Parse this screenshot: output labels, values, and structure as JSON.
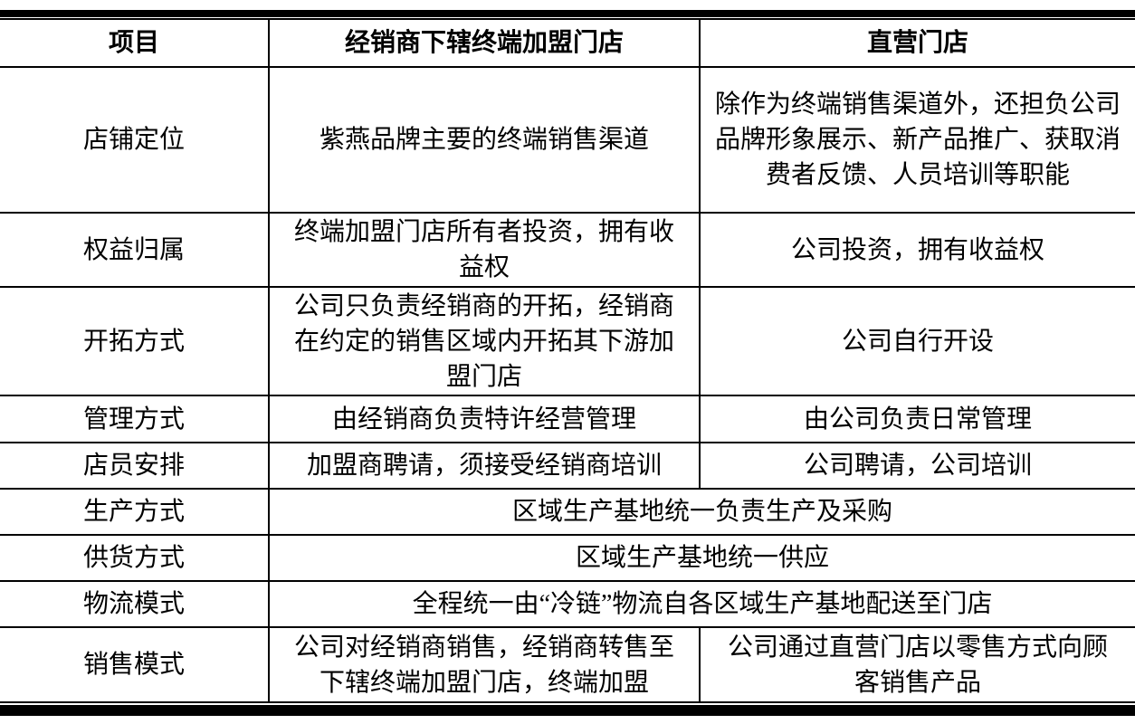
{
  "table": {
    "headers": [
      "项目",
      "经销商下辖终端加盟门店",
      "直营门店"
    ],
    "rows": [
      {
        "item": "店铺定位",
        "franchise": "紫燕品牌主要的终端销售渠道",
        "direct": "除作为终端销售渠道外，还担负公司品牌形象展示、新产品推广、获取消费者反馈、人员培训等职能"
      },
      {
        "item": "权益归属",
        "franchise": "终端加盟门店所有者投资，拥有收益权",
        "direct": "公司投资，拥有收益权"
      },
      {
        "item": "开拓方式",
        "franchise": "公司只负责经销商的开拓，经销商在约定的销售区域内开拓其下游加盟门店",
        "direct": "公司自行开设"
      },
      {
        "item": "管理方式",
        "franchise": "由经销商负责特许经营管理",
        "direct": "由公司负责日常管理"
      },
      {
        "item": "店员安排",
        "franchise": "加盟商聘请，须接受经销商培训",
        "direct": "公司聘请，公司培训"
      },
      {
        "item": "生产方式",
        "merged": "区域生产基地统一负责生产及采购"
      },
      {
        "item": "供货方式",
        "merged": "区域生产基地统一供应"
      },
      {
        "item": "物流模式",
        "merged": "全程统一由“冷链”物流自各区域生产基地配送至门店"
      },
      {
        "item": "销售模式",
        "franchise": "公司对经销商销售，经销商转售至下辖终端加盟门店，终端加盟",
        "direct": "公司通过直营门店以零售方式向顾客销售产品"
      }
    ]
  }
}
